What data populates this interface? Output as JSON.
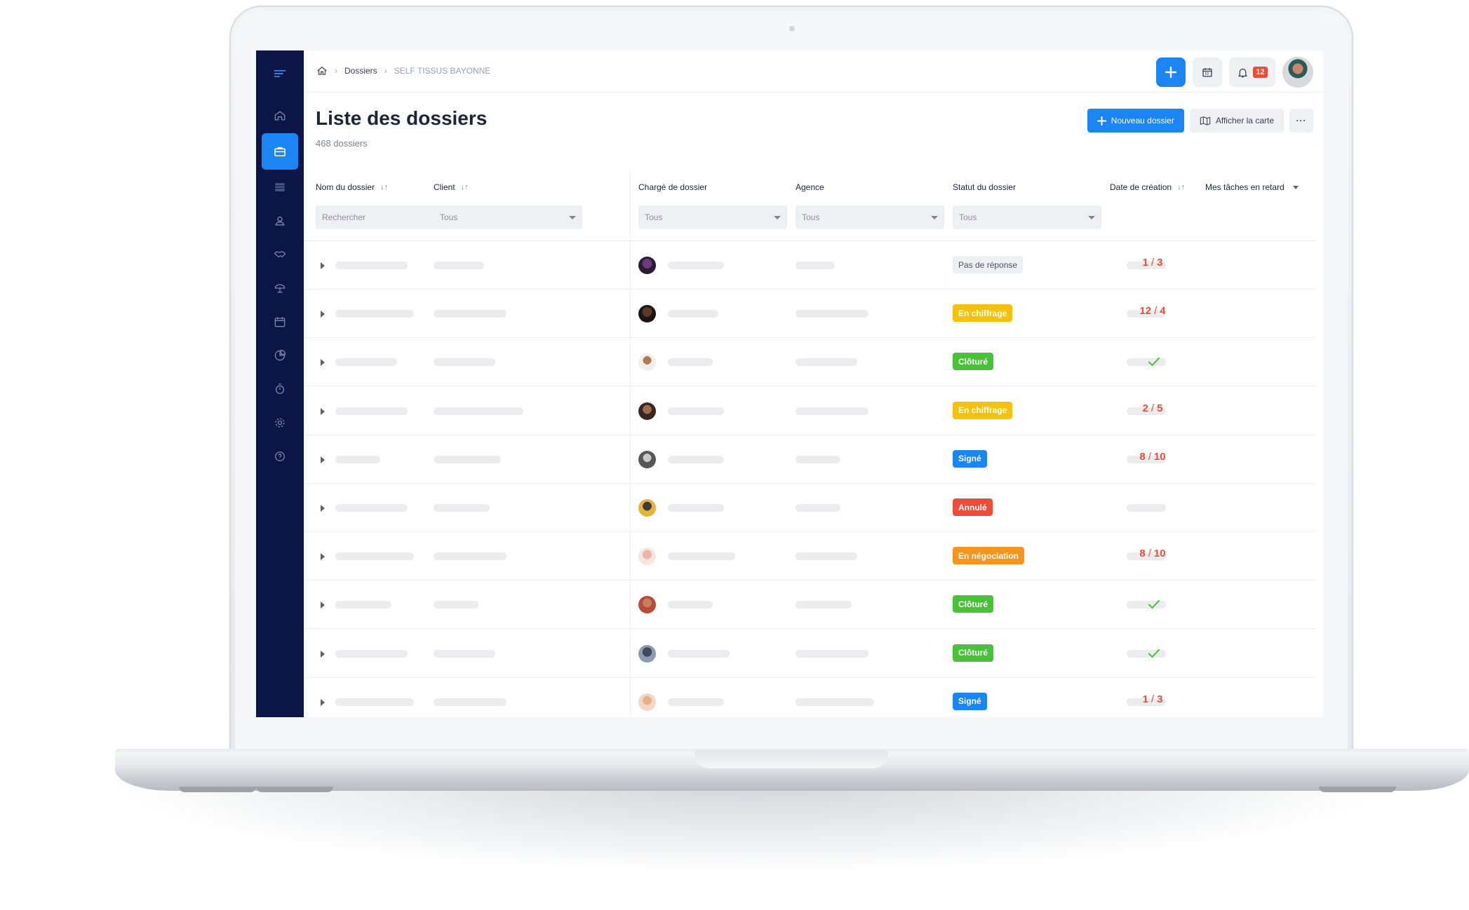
{
  "colors": {
    "sidebar": "#0b1646",
    "accent": "#1b85f3",
    "danger": "#ee4b3b",
    "success": "#49c23a",
    "warning": "#f4c20d",
    "orange": "#f7941d",
    "neutral_badge": "#eef0f3"
  },
  "sidebar": {
    "items": [
      {
        "icon": "menu-icon"
      },
      {
        "icon": "home-icon"
      },
      {
        "icon": "briefcase-icon",
        "active": true
      },
      {
        "icon": "server-icon"
      },
      {
        "icon": "user-icon"
      },
      {
        "icon": "handshake-icon"
      },
      {
        "icon": "umbrella-icon"
      },
      {
        "icon": "calendar-icon"
      },
      {
        "icon": "pie-chart-icon"
      },
      {
        "icon": "stopwatch-icon"
      },
      {
        "icon": "gear-icon"
      },
      {
        "icon": "help-icon"
      }
    ]
  },
  "breadcrumb": {
    "home_icon": "home-icon",
    "items": [
      "Dossiers",
      "SELF TISSUS BAYONNE"
    ]
  },
  "topbar": {
    "notif_count": "12",
    "add_icon": "plus-icon",
    "calendar_icon": "calendar-icon",
    "bell_icon": "bell-icon"
  },
  "page": {
    "title": "Liste des dossiers",
    "count": "468 dossiers",
    "new_button": "Nouveau dossier",
    "map_button": "Afficher la carte",
    "more_button": "···"
  },
  "table": {
    "columns": [
      "Nom du dossier",
      "Client",
      "Chargé de dossier",
      "Agence",
      "Statut du dossier",
      "Date de création",
      "Mes tâches en retard"
    ],
    "search_placeholder": "Rechercher",
    "filter_all": "Tous",
    "rows": [
      {
        "status": "Pas de réponse",
        "status_style": "neutral",
        "tasks_done": "1",
        "tasks_total": "3"
      },
      {
        "status": "En chiffrage",
        "status_style": "yellow",
        "tasks_done": "12",
        "tasks_total": "4"
      },
      {
        "status": "Clôturé",
        "status_style": "green",
        "tasks_state": "check"
      },
      {
        "status": "En chiffrage",
        "status_style": "yellow",
        "tasks_done": "2",
        "tasks_total": "5"
      },
      {
        "status": "Signé",
        "status_style": "blue",
        "tasks_done": "8",
        "tasks_total": "10"
      },
      {
        "status": "Annulé",
        "status_style": "red",
        "tasks_state": "empty"
      },
      {
        "status": "En négociation",
        "status_style": "orange",
        "tasks_done": "8",
        "tasks_total": "10"
      },
      {
        "status": "Clôturé",
        "status_style": "green",
        "tasks_state": "check"
      },
      {
        "status": "Clôturé",
        "status_style": "green",
        "tasks_state": "check"
      },
      {
        "status": "Signé",
        "status_style": "blue",
        "tasks_done": "1",
        "tasks_total": "3"
      }
    ]
  }
}
